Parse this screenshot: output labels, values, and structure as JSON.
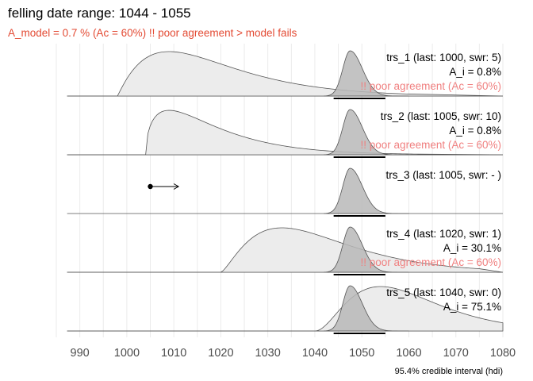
{
  "chart_data": {
    "type": "area",
    "title": "felling date range:  1044  -  1055",
    "subtitle": "A_model =  0.7 % (Ac = 60%)  !! poor agreement > model fails",
    "caption": "95.4% credible interval (hdi)",
    "xlim": [
      985,
      1080
    ],
    "xticks": [
      990,
      1000,
      1010,
      1020,
      1030,
      1040,
      1050,
      1060,
      1070,
      1080
    ],
    "grid": true,
    "felling_range": [
      1044,
      1055
    ],
    "model_density": {
      "mode": 1047.5,
      "start": 1044,
      "end": 1055
    },
    "series": [
      {
        "name": "trs_1",
        "label": "trs_1 (last: 1000, swr: 5)",
        "agreement": "A_i = 0.8%",
        "warning": "!! poor agreement (Ac = 60%)",
        "density": {
          "start": 998,
          "mode": 1009,
          "end": 1060
        }
      },
      {
        "name": "trs_2",
        "label": "trs_2 (last: 1005, swr: 10)",
        "agreement": "A_i = 0.8%",
        "warning": "!! poor agreement (Ac = 60%)",
        "density": {
          "start": 1004,
          "mode": 1009,
          "end": 1062
        }
      },
      {
        "name": "trs_3",
        "label": "trs_3 (last: 1005, swr: - )",
        "agreement": "",
        "warning": "",
        "density": null,
        "arrow": {
          "from": 1005,
          "to": 1011
        }
      },
      {
        "name": "trs_4",
        "label": "trs_4 (last: 1020, swr: 1)",
        "agreement": "A_i = 30.1%",
        "warning": "!! poor agreement (Ac = 60%)",
        "density": {
          "start": 1020,
          "mode": 1033,
          "end": 1075
        }
      },
      {
        "name": "trs_5",
        "label": "trs_5 (last: 1040, swr: 0)",
        "agreement": "A_i = 75.1%",
        "warning": "",
        "density": {
          "start": 1040,
          "mode": 1054,
          "end": 1080
        }
      }
    ],
    "colors": {
      "subtitle": "#e34a33",
      "warning": "#f08080",
      "series_fill": "#ececec",
      "model_fill": "#b8b8b8",
      "outline": "#555555",
      "grid": "#ebebeb"
    }
  }
}
